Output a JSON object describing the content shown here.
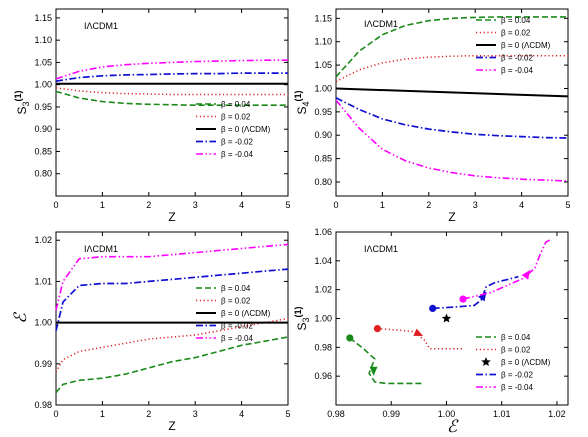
{
  "colors": {
    "green": "#1a8a1a",
    "red": "#e02020",
    "black": "#000000",
    "blue": "#1010d0",
    "magenta": "#ff00ff"
  },
  "chart_data": [
    {
      "type": "line",
      "model_label": "IΛCDM1",
      "xlabel": "Z",
      "ylabel": "S3(1)",
      "xlim": [
        0,
        5
      ],
      "ylim": [
        0.75,
        1.17
      ],
      "xticks": [
        "0",
        "1",
        "2",
        "3",
        "4",
        "5"
      ],
      "yticks": [
        "0.80",
        "0.85",
        "0.90",
        "0.95",
        "1.00",
        "1.05",
        "1.10",
        "1.15"
      ],
      "legend_position": "bottom-right",
      "series": [
        {
          "name": "β = 0.04",
          "x": [
            0,
            0.5,
            1,
            1.5,
            2,
            2.5,
            3,
            3.5,
            4,
            4.5,
            5
          ],
          "y": [
            0.985,
            0.97,
            0.962,
            0.958,
            0.956,
            0.955,
            0.954,
            0.954,
            0.954,
            0.954,
            0.954
          ]
        },
        {
          "name": "β = 0.02",
          "x": [
            0,
            0.5,
            1,
            1.5,
            2,
            2.5,
            3,
            3.5,
            4,
            4.5,
            5
          ],
          "y": [
            0.993,
            0.986,
            0.982,
            0.98,
            0.979,
            0.978,
            0.978,
            0.978,
            0.978,
            0.978,
            0.978
          ]
        },
        {
          "name": "β = 0  (ΛCDM)",
          "x": [
            0,
            5
          ],
          "y": [
            1.002,
            1.002
          ]
        },
        {
          "name": "β = -0.02",
          "x": [
            0,
            0.5,
            1,
            1.5,
            2,
            2.5,
            3,
            3.5,
            4,
            4.5,
            5
          ],
          "y": [
            1.008,
            1.016,
            1.02,
            1.022,
            1.023,
            1.024,
            1.025,
            1.025,
            1.026,
            1.026,
            1.026
          ]
        },
        {
          "name": "β = -0.04",
          "x": [
            0,
            0.5,
            1,
            1.5,
            2,
            2.5,
            3,
            3.5,
            4,
            4.5,
            5
          ],
          "y": [
            1.013,
            1.03,
            1.04,
            1.045,
            1.048,
            1.05,
            1.052,
            1.053,
            1.054,
            1.055,
            1.055
          ]
        }
      ]
    },
    {
      "type": "line",
      "model_label": "IΛCDM1",
      "xlabel": "Z",
      "ylabel": "S4(1)",
      "xlim": [
        0,
        5
      ],
      "ylim": [
        0.77,
        1.17
      ],
      "xticks": [
        "0",
        "1",
        "2",
        "3",
        "4",
        "5"
      ],
      "yticks": [
        "0.80",
        "0.85",
        "0.90",
        "0.95",
        "1.00",
        "1.05",
        "1.10",
        "1.15"
      ],
      "legend_position": "top-right",
      "series": [
        {
          "name": "β = 0.04",
          "x": [
            0,
            0.5,
            1,
            1.5,
            2,
            2.5,
            3,
            3.5,
            4,
            4.5,
            5
          ],
          "y": [
            1.025,
            1.08,
            1.115,
            1.135,
            1.145,
            1.15,
            1.152,
            1.153,
            1.153,
            1.153,
            1.153
          ]
        },
        {
          "name": "β = 0.02",
          "x": [
            0,
            0.5,
            1,
            1.5,
            2,
            2.5,
            3,
            3.5,
            4,
            4.5,
            5
          ],
          "y": [
            1.015,
            1.04,
            1.055,
            1.063,
            1.067,
            1.069,
            1.07,
            1.07,
            1.07,
            1.07,
            1.07
          ]
        },
        {
          "name": "β = 0  (ΛCDM)",
          "x": [
            0,
            5
          ],
          "y": [
            1.0,
            0.983
          ]
        },
        {
          "name": "β = -0.02",
          "x": [
            0,
            0.5,
            1,
            1.5,
            2,
            2.5,
            3,
            3.5,
            4,
            4.5,
            5
          ],
          "y": [
            0.98,
            0.955,
            0.935,
            0.922,
            0.913,
            0.907,
            0.902,
            0.899,
            0.897,
            0.895,
            0.894
          ]
        },
        {
          "name": "β = -0.04",
          "x": [
            0,
            0.5,
            1,
            1.5,
            2,
            2.5,
            3,
            3.5,
            4,
            4.5,
            5
          ],
          "y": [
            0.975,
            0.915,
            0.87,
            0.845,
            0.83,
            0.82,
            0.813,
            0.809,
            0.806,
            0.804,
            0.802
          ]
        }
      ]
    },
    {
      "type": "line",
      "model_label": "IΛCDM1",
      "xlabel": "Z",
      "ylabel": "ℰ",
      "xlim": [
        0,
        5
      ],
      "ylim": [
        0.98,
        1.022
      ],
      "xticks": [
        "0",
        "1",
        "2",
        "3",
        "4",
        "5"
      ],
      "yticks": [
        "0.98",
        "0.99",
        "1.00",
        "1.01",
        "1.02"
      ],
      "legend_position": "center-right",
      "series": [
        {
          "name": "β = 0.04",
          "x": [
            0,
            0.15,
            0.5,
            1,
            1.5,
            2,
            2.5,
            3,
            3.5,
            4,
            4.5,
            5
          ],
          "y": [
            0.983,
            0.985,
            0.986,
            0.9865,
            0.9875,
            0.989,
            0.9905,
            0.9915,
            0.993,
            0.9945,
            0.9955,
            0.9965
          ]
        },
        {
          "name": "β = 0.02",
          "x": [
            0,
            0.15,
            0.5,
            1,
            1.5,
            2,
            2.5,
            3,
            3.5,
            4,
            4.5,
            5
          ],
          "y": [
            0.988,
            0.991,
            0.993,
            0.994,
            0.995,
            0.996,
            0.9965,
            0.997,
            0.998,
            0.999,
            1.0,
            1.001
          ]
        },
        {
          "name": "β = 0  (ΛCDM)",
          "x": [
            0,
            5
          ],
          "y": [
            1.0,
            1.0
          ]
        },
        {
          "name": "β = -0.02",
          "x": [
            0,
            0.15,
            0.5,
            1,
            1.5,
            2,
            2.5,
            3,
            3.5,
            4,
            4.5,
            5
          ],
          "y": [
            0.998,
            1.005,
            1.009,
            1.0095,
            1.0095,
            1.01,
            1.0105,
            1.011,
            1.0115,
            1.012,
            1.0125,
            1.013
          ]
        },
        {
          "name": "β = -0.04",
          "x": [
            0,
            0.15,
            0.5,
            1,
            1.5,
            2,
            2.5,
            3,
            3.5,
            4,
            4.5,
            5
          ],
          "y": [
            1.003,
            1.01,
            1.0155,
            1.016,
            1.016,
            1.016,
            1.0165,
            1.017,
            1.0175,
            1.018,
            1.0185,
            1.019
          ]
        }
      ]
    },
    {
      "type": "scatter",
      "model_label": "IΛCDM1",
      "xlabel": "ℰ",
      "ylabel": "S3(1)",
      "xlim": [
        0.98,
        1.022
      ],
      "ylim": [
        0.94,
        1.06
      ],
      "xticks": [
        "0.98",
        "0.99",
        "1.00",
        "1.01",
        "1.02"
      ],
      "yticks": [
        "0.96",
        "0.98",
        "1.00",
        "1.02",
        "1.04",
        "1.06"
      ],
      "legend_position": "bottom-right",
      "series": [
        {
          "name": "β = 0.04",
          "x": [
            0.9825,
            0.985,
            0.987,
            0.986,
            0.987,
            0.989,
            0.993,
            0.996
          ],
          "y": [
            0.9865,
            0.979,
            0.972,
            0.962,
            0.956,
            0.955,
            0.955,
            0.955
          ],
          "start": [
            0.9825,
            0.9865
          ],
          "arrow": [
            0.9868,
            0.9665
          ]
        },
        {
          "name": "β = 0.02",
          "x": [
            0.9875,
            0.991,
            0.994,
            0.996,
            0.997,
            0.999,
            1.003
          ],
          "y": [
            0.993,
            0.992,
            0.991,
            0.985,
            0.979,
            0.979,
            0.979
          ],
          "start": [
            0.9875,
            0.993
          ],
          "arrow": [
            0.9943,
            0.9905
          ]
        },
        {
          "name": "β = 0  (ΛCDM)",
          "x": [
            1.0
          ],
          "y": [
            1.0
          ]
        },
        {
          "name": "β = -0.02",
          "x": [
            0.9975,
            1.0015,
            1.005,
            1.0063,
            1.0072,
            1.0088,
            1.011,
            1.013
          ],
          "y": [
            1.007,
            1.008,
            1.009,
            1.013,
            1.022,
            1.025,
            1.027,
            1.029
          ],
          "start": [
            0.9975,
            1.007
          ],
          "arrow": [
            1.0063,
            1.0135
          ]
        },
        {
          "name": "β = -0.04",
          "x": [
            1.003,
            1.008,
            1.014,
            1.016,
            1.017,
            1.018,
            1.019
          ],
          "y": [
            1.0135,
            1.018,
            1.028,
            1.035,
            1.045,
            1.053,
            1.055
          ],
          "start": [
            1.003,
            1.0135
          ],
          "arrow": [
            1.0142,
            1.0285
          ]
        }
      ]
    }
  ]
}
